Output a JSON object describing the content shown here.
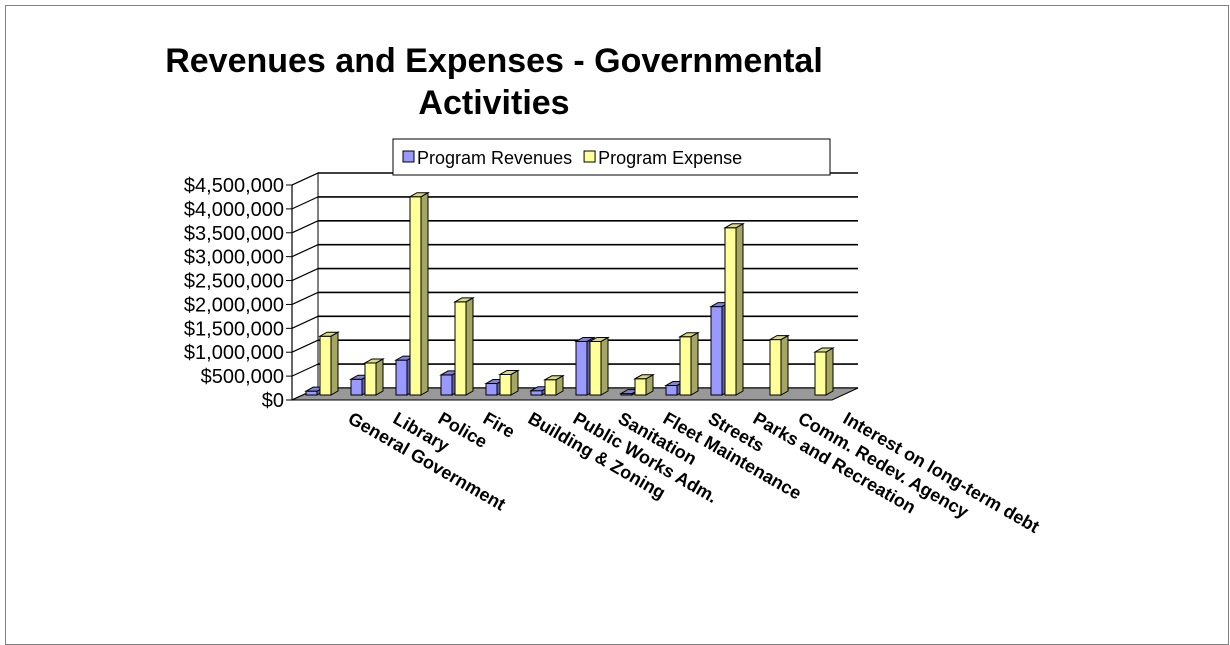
{
  "chart_data": {
    "type": "bar",
    "title": "Revenues and Expenses - Governmental Activities",
    "categories": [
      "General Government",
      "Library",
      "Police",
      "Fire",
      "Building & Zoning",
      "Public Works Adm.",
      "Sanitation",
      "Fleet Maintenance",
      "Streets",
      "Parks and Recreation",
      "Comm. Redev. Agency",
      "Interest on long-term debt"
    ],
    "series": [
      {
        "name": "Program Revenues",
        "color": "#9999ff",
        "values": [
          80000,
          330000,
          730000,
          420000,
          240000,
          90000,
          1120000,
          30000,
          200000,
          1850000,
          0,
          0
        ]
      },
      {
        "name": "Program Expense",
        "color": "#ffff99",
        "values": [
          1230000,
          670000,
          4150000,
          1950000,
          430000,
          320000,
          1120000,
          340000,
          1220000,
          3500000,
          1160000,
          900000
        ]
      }
    ],
    "yticks": [
      "$0",
      "$500,000",
      "$1,000,000",
      "$1,500,000",
      "$2,000,000",
      "$2,500,000",
      "$3,000,000",
      "$3,500,000",
      "$4,000,000",
      "$4,500,000"
    ],
    "ylim": [
      0,
      4500000
    ],
    "grid": true,
    "legend_position": "top",
    "chart_style": "3d-column"
  }
}
